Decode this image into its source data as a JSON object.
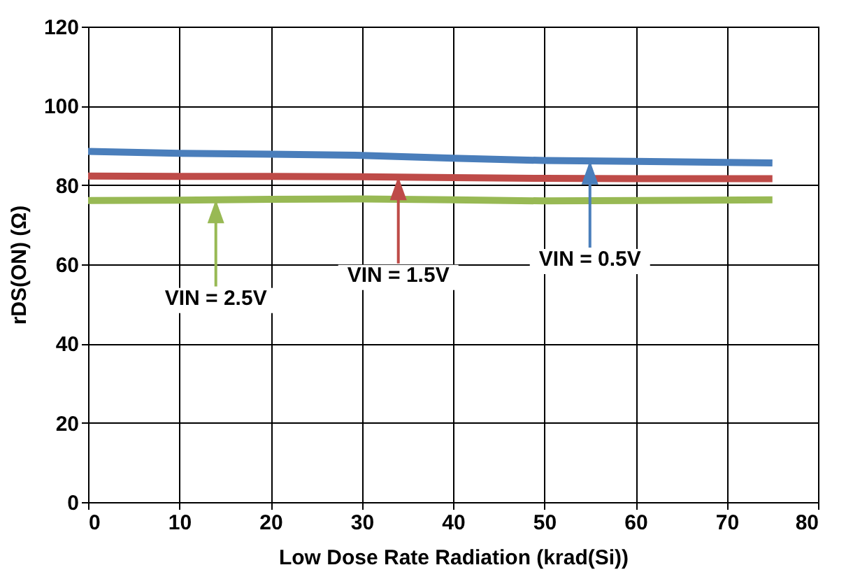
{
  "chart_data": {
    "type": "line",
    "xlabel": "Low Dose Rate Radiation (krad(Si))",
    "ylabel": "rDS(ON) (Ω)",
    "x": [
      0,
      10,
      20,
      30,
      40,
      50,
      60,
      75
    ],
    "series": [
      {
        "color": "#4a7ebb",
        "values": [
          88.5,
          88,
          87.8,
          87.5,
          86.8,
          86.2,
          86,
          85.6
        ]
      },
      {
        "color": "#be4b48",
        "values": [
          82.3,
          82.2,
          82.2,
          82.1,
          81.9,
          81.7,
          81.6,
          81.6
        ]
      },
      {
        "color": "#98b954",
        "values": [
          76.1,
          76.2,
          76.4,
          76.5,
          76.3,
          76,
          76.1,
          76.3
        ]
      }
    ],
    "annotations": [
      {
        "text": "VIN = 2.5V",
        "x": 14,
        "y": 76.3
      },
      {
        "text": "VIN = 1.5V",
        "x": 34,
        "y": 82.1
      },
      {
        "text": "VIN = 0.5V",
        "x": 55,
        "y": 86.1
      }
    ],
    "xlim": [
      0,
      80
    ],
    "xticks": [
      0,
      10,
      20,
      30,
      40,
      50,
      60,
      70,
      80
    ],
    "ylim": [
      0,
      120
    ],
    "yticks": [
      0,
      20,
      40,
      60,
      80,
      100,
      120
    ],
    "grid": true,
    "marker": "none",
    "line_style": "solid"
  }
}
